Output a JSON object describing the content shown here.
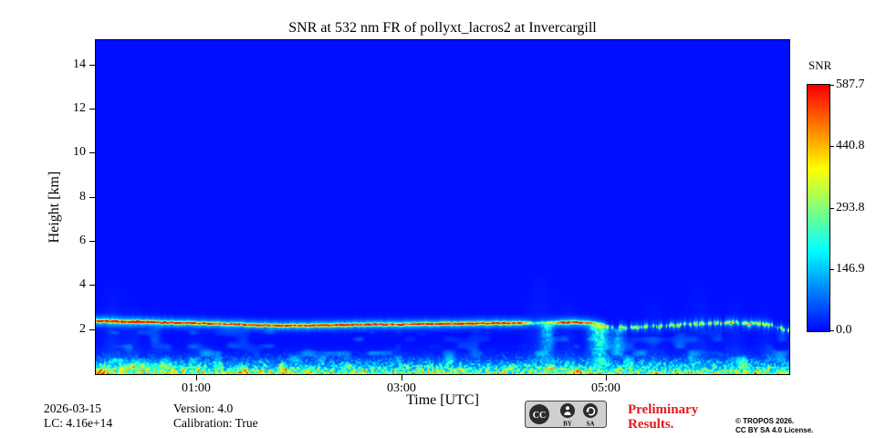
{
  "page": {
    "background": "#ffffff"
  },
  "chart_data": {
    "type": "heatmap",
    "title": "SNR at 532 nm FR of pollyxt_lacros2 at Invercargill",
    "xlabel": "Time [UTC]",
    "ylabel": "Height [km]",
    "x_range_hours": [
      0.02,
      6.78
    ],
    "y_range_km": [
      0,
      15.1
    ],
    "x_ticks": [
      {
        "label": "01:00",
        "hour": 1
      },
      {
        "label": "03:00",
        "hour": 3
      },
      {
        "label": "05:00",
        "hour": 5
      }
    ],
    "y_ticks": [
      2,
      4,
      6,
      8,
      10,
      12,
      14
    ],
    "colorbar": {
      "label": "SNR",
      "vmin": 0.0,
      "vmax": 587.7,
      "ticks": [
        0.0,
        146.9,
        293.8,
        440.8,
        587.7
      ],
      "tick_labels": [
        "0.0",
        "146.9",
        "293.8",
        "440.8",
        "587.7"
      ],
      "colormap": "jet"
    },
    "background_snr": 6,
    "aerosol_layer": {
      "peak_snr": 540,
      "halo_snr": 150,
      "core_sigma_km": 0.045,
      "halo_sigma_km": 0.16,
      "broken_after_hour": 5.0,
      "control_points": [
        [
          0.02,
          2.38,
          0.95
        ],
        [
          0.4,
          2.35,
          0.95
        ],
        [
          0.8,
          2.31,
          0.9
        ],
        [
          1.1,
          2.27,
          0.85
        ],
        [
          1.4,
          2.23,
          0.9
        ],
        [
          1.7,
          2.19,
          0.85
        ],
        [
          2.0,
          2.17,
          0.9
        ],
        [
          2.3,
          2.2,
          0.92
        ],
        [
          2.7,
          2.23,
          0.9
        ],
        [
          3.1,
          2.24,
          0.92
        ],
        [
          3.5,
          2.26,
          0.9
        ],
        [
          3.9,
          2.28,
          0.9
        ],
        [
          4.15,
          2.3,
          0.88
        ],
        [
          4.3,
          2.28,
          0.3
        ],
        [
          4.45,
          2.3,
          0.6
        ],
        [
          4.6,
          2.33,
          0.9
        ],
        [
          4.8,
          2.32,
          0.85
        ],
        [
          4.95,
          2.25,
          0.45
        ],
        [
          5.05,
          2.05,
          0.5
        ],
        [
          5.2,
          2.1,
          0.75
        ],
        [
          5.4,
          2.12,
          0.65
        ],
        [
          5.6,
          2.18,
          0.8
        ],
        [
          5.8,
          2.22,
          0.75
        ],
        [
          6.0,
          2.27,
          0.8
        ],
        [
          6.2,
          2.3,
          0.8
        ],
        [
          6.4,
          2.28,
          0.82
        ],
        [
          6.6,
          2.22,
          0.75
        ],
        [
          6.78,
          1.95,
          0.6
        ]
      ]
    },
    "surface_layer": {
      "peak_snr": 360,
      "scale_km": 0.5,
      "speckle_top_km": 1.35
    },
    "fall_streaks": [
      {
        "hour": 4.42,
        "width_h": 0.06,
        "top_km": 2.2,
        "bottom_km": 0.5,
        "strength": 0.5
      },
      {
        "hour": 4.93,
        "width_h": 0.09,
        "top_km": 2.2,
        "bottom_km": 0.15,
        "strength": 0.85
      },
      {
        "hour": 5.12,
        "width_h": 0.05,
        "top_km": 2.0,
        "bottom_km": 0.7,
        "strength": 0.4
      }
    ],
    "faint_columns": [
      {
        "hour": 0.18,
        "width_h": 0.1,
        "top_km": 4.5,
        "snr": 35
      },
      {
        "hour": 0.38,
        "width_h": 0.08,
        "top_km": 3.8,
        "snr": 28
      },
      {
        "hour": 0.6,
        "width_h": 0.08,
        "top_km": 3.2,
        "snr": 24
      },
      {
        "hour": 1.0,
        "width_h": 0.1,
        "top_km": 2.8,
        "snr": 20
      },
      {
        "hour": 4.35,
        "width_h": 0.12,
        "top_km": 5.0,
        "snr": 30
      },
      {
        "hour": 4.62,
        "width_h": 0.08,
        "top_km": 4.0,
        "snr": 24
      },
      {
        "hour": 5.45,
        "width_h": 0.1,
        "top_km": 4.0,
        "snr": 26
      },
      {
        "hour": 5.9,
        "width_h": 0.12,
        "top_km": 4.5,
        "snr": 28
      },
      {
        "hour": 6.25,
        "width_h": 0.1,
        "top_km": 4.0,
        "snr": 26
      },
      {
        "hour": 6.55,
        "width_h": 0.08,
        "top_km": 3.5,
        "snr": 22
      }
    ]
  },
  "footer": {
    "date": "2026-03-15",
    "lc": "LC: 4.16e+14",
    "version": "Version: 4.0",
    "calibration": "Calibration: True",
    "preliminary_line1": "Preliminary",
    "preliminary_line2": "Results.",
    "preliminary_color": "#e31a1c",
    "copyright_line1": "© TROPOS 2026.",
    "copyright_line2": "CC BY SA 4.0 License.",
    "license_badge": {
      "labels": [
        "CC",
        "BY",
        "SA"
      ]
    }
  }
}
